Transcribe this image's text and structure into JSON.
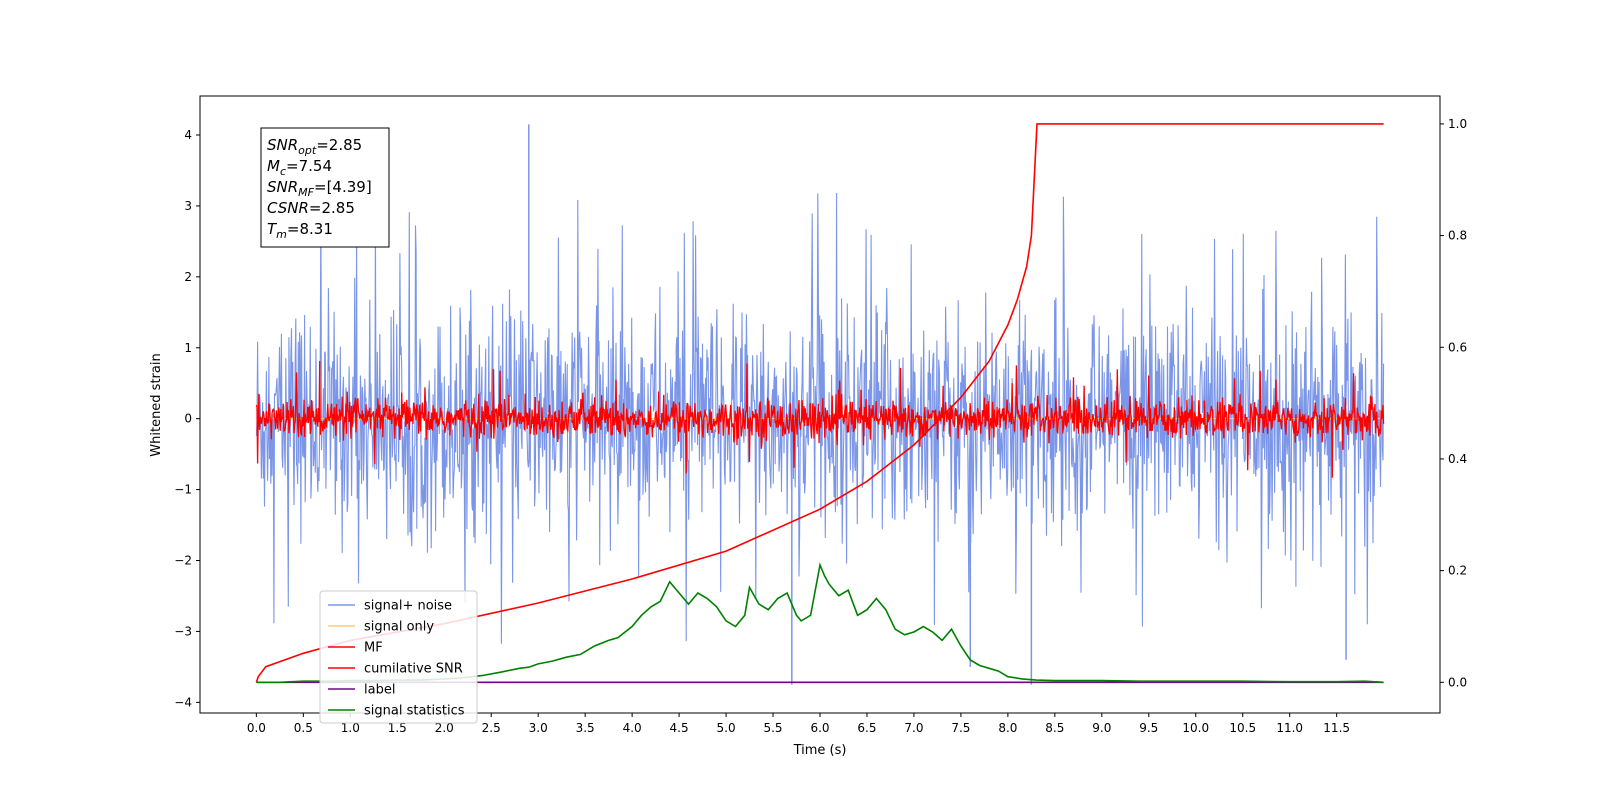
{
  "chart_data": {
    "type": "line",
    "xlabel": "Time (s)",
    "ylabel": "Whitened strain",
    "xlim": [
      -0.6,
      12.6
    ],
    "ylim_left": [
      -4.15,
      4.55
    ],
    "ylim_right": [
      -0.055,
      1.05
    ],
    "x_ticks": [
      "0.0",
      "0.5",
      "1.0",
      "1.5",
      "2.0",
      "2.5",
      "3.0",
      "3.5",
      "4.0",
      "4.5",
      "5.0",
      "5.5",
      "6.0",
      "6.5",
      "7.0",
      "7.5",
      "8.0",
      "8.5",
      "9.0",
      "9.5",
      "10.0",
      "10.5",
      "11.0",
      "11.5"
    ],
    "y_ticks_left": [
      "4",
      "3",
      "2",
      "1",
      "0",
      "−1",
      "−2",
      "−3",
      "−4"
    ],
    "y_ticks_right": [
      "1.0",
      "0.8",
      "0.6",
      "0.4",
      "0.2",
      "0.0"
    ],
    "annotation": {
      "lines": [
        {
          "var": "SNR",
          "sub": "opt",
          "value": "=2.85"
        },
        {
          "var": "M",
          "sub": "c",
          "value": "=7.54"
        },
        {
          "var": "SNR",
          "sub": "MF",
          "value": "=[4.39]"
        },
        {
          "var": "CSNR",
          "sub": "",
          "value": "=2.85"
        },
        {
          "var": "T",
          "sub": "m",
          "value": "=8.31"
        }
      ]
    },
    "series": [
      {
        "name": "signal+ noise",
        "color": "#7b96e8",
        "axis": "left",
        "kind": "noise",
        "x_range": [
          0,
          12
        ],
        "amplitude": 1.0,
        "notable_spikes": [
          [
            2.9,
            4.15
          ],
          [
            5.7,
            -3.75
          ],
          [
            8.25,
            -3.75
          ],
          [
            7.6,
            -3.5
          ],
          [
            11.6,
            -3.4
          ]
        ]
      },
      {
        "name": "signal only",
        "color": "#ffcc80",
        "axis": "left",
        "kind": "flat",
        "value": 0
      },
      {
        "name": "MF",
        "color": "#ff0000",
        "axis": "left",
        "kind": "noise",
        "x_range": [
          0,
          12
        ],
        "amplitude": 0.18
      },
      {
        "name": "cumilative SNR",
        "color": "#ff0000",
        "axis": "right",
        "x": [
          0.0,
          0.02,
          0.1,
          0.5,
          1.0,
          2.0,
          3.0,
          4.0,
          5.0,
          6.0,
          6.5,
          7.0,
          7.5,
          7.8,
          8.0,
          8.1,
          8.2,
          8.25,
          8.31,
          12.0
        ],
        "y": [
          0.0,
          0.01,
          0.028,
          0.052,
          0.075,
          0.105,
          0.142,
          0.185,
          0.235,
          0.31,
          0.36,
          0.425,
          0.51,
          0.575,
          0.64,
          0.685,
          0.745,
          0.8,
          1.0,
          1.0
        ]
      },
      {
        "name": "label",
        "color": "#6a0d83",
        "axis": "right",
        "x": [
          0.0,
          12.0
        ],
        "y": [
          0.0,
          0.0
        ]
      },
      {
        "name": "signal statistics",
        "color": "#008000",
        "axis": "right",
        "x": [
          0.0,
          0.25,
          0.5,
          0.75,
          1.0,
          1.25,
          1.5,
          1.75,
          2.0,
          2.2,
          2.4,
          2.6,
          2.8,
          2.9,
          3.0,
          3.15,
          3.3,
          3.45,
          3.6,
          3.75,
          3.85,
          4.0,
          4.1,
          4.2,
          4.3,
          4.4,
          4.5,
          4.6,
          4.7,
          4.8,
          4.9,
          5.0,
          5.1,
          5.2,
          5.25,
          5.35,
          5.45,
          5.55,
          5.65,
          5.75,
          5.8,
          5.9,
          6.0,
          6.05,
          6.1,
          6.2,
          6.3,
          6.4,
          6.5,
          6.6,
          6.7,
          6.8,
          6.9,
          7.0,
          7.1,
          7.2,
          7.3,
          7.4,
          7.5,
          7.6,
          7.7,
          7.8,
          7.9,
          8.0,
          8.15,
          8.3,
          8.5,
          8.8,
          9.0,
          9.4,
          9.8,
          10.5,
          11.0,
          11.5,
          11.8,
          12.0
        ],
        "y": [
          0.0,
          0.0,
          0.002,
          0.002,
          0.003,
          0.003,
          0.004,
          0.004,
          0.006,
          0.008,
          0.012,
          0.018,
          0.025,
          0.027,
          0.033,
          0.038,
          0.045,
          0.05,
          0.065,
          0.075,
          0.08,
          0.1,
          0.12,
          0.135,
          0.145,
          0.18,
          0.16,
          0.14,
          0.16,
          0.15,
          0.135,
          0.11,
          0.1,
          0.12,
          0.17,
          0.14,
          0.13,
          0.15,
          0.16,
          0.12,
          0.11,
          0.12,
          0.21,
          0.19,
          0.175,
          0.155,
          0.165,
          0.12,
          0.13,
          0.15,
          0.13,
          0.095,
          0.085,
          0.09,
          0.1,
          0.09,
          0.075,
          0.095,
          0.065,
          0.04,
          0.03,
          0.025,
          0.02,
          0.01,
          0.006,
          0.004,
          0.003,
          0.003,
          0.003,
          0.002,
          0.002,
          0.002,
          0.001,
          0.001,
          0.002,
          0.0
        ]
      }
    ],
    "legend": {
      "placement": "lower-left",
      "entries": [
        {
          "label": "signal+ noise",
          "color": "#7b96e8"
        },
        {
          "label": "signal only",
          "color": "#ffcc80"
        },
        {
          "label": "MF",
          "color": "#ff0000"
        },
        {
          "label": "cumilative SNR",
          "color": "#ff0000"
        },
        {
          "label": "label",
          "color": "#6a0d83"
        },
        {
          "label": "signal statistics",
          "color": "#008000"
        }
      ]
    },
    "grid": false
  }
}
